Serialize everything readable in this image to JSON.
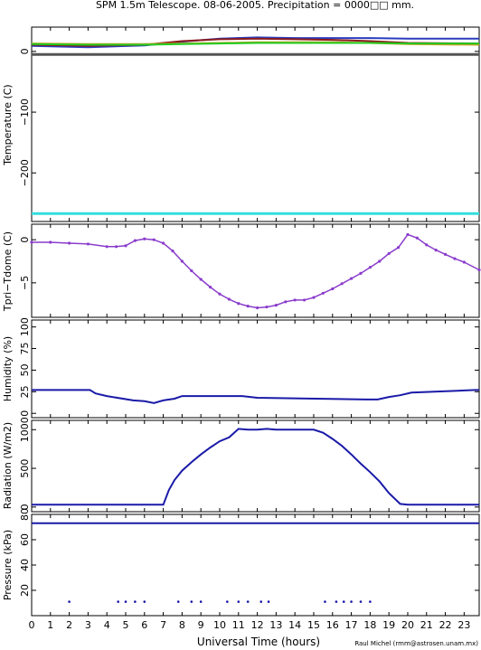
{
  "chart_data": [
    {
      "type": "line",
      "title": "SPM 1.5m Telescope. 08-06-2005. Precipitation = 0000□□ mm.",
      "ylabel": "Temperature (C)",
      "xlabel": "",
      "xlim": [
        0,
        23.8
      ],
      "ylim": [
        -280,
        40
      ],
      "yticks": [
        0,
        -100,
        -200
      ],
      "ytick_labels": [
        "0",
        "−100",
        "−200"
      ],
      "series": [
        {
          "color": "#2a3cbf",
          "x": [
            0,
            3,
            6,
            8,
            10,
            12,
            14,
            16,
            18,
            20,
            23.8
          ],
          "values": [
            9,
            7,
            10,
            16,
            21,
            23,
            22,
            22,
            22,
            21,
            21
          ]
        },
        {
          "color": "#8b1a1a",
          "x": [
            0,
            3,
            6,
            8,
            10,
            12,
            14,
            16,
            18,
            20,
            23.8
          ],
          "values": [
            11,
            9,
            11,
            17,
            20,
            21,
            20,
            19,
            17,
            14,
            13
          ]
        },
        {
          "color": "#c8a020",
          "x": [
            0,
            3,
            6,
            8,
            10,
            12,
            14,
            16,
            18,
            20,
            23.8
          ],
          "values": [
            13,
            12,
            12,
            13,
            14,
            15,
            15,
            15,
            14,
            12,
            11
          ]
        },
        {
          "color": "#22cc22",
          "x": [
            0,
            3,
            6,
            8,
            10,
            12,
            14,
            16,
            18,
            20,
            23.8
          ],
          "values": [
            12,
            11,
            11,
            12,
            13,
            14,
            14,
            14,
            14,
            13,
            13
          ]
        },
        {
          "color": "#555555",
          "x": [
            0,
            23.8
          ],
          "values": [
            -5,
            -5
          ]
        },
        {
          "color": "#33dddd",
          "x": [
            0,
            23.8
          ],
          "values": [
            -267,
            -267
          ]
        }
      ]
    },
    {
      "type": "scatter",
      "ylabel": "Tpri−Tdome (C)",
      "xlim": [
        0,
        23.8
      ],
      "ylim": [
        -9,
        1.8
      ],
      "yticks": [
        0,
        -5
      ],
      "ytick_labels": [
        "0",
        "−5"
      ],
      "series": [
        {
          "color": "#8a3ccc",
          "x": [
            0,
            1,
            2,
            3,
            4,
            4.5,
            5,
            5.5,
            6,
            6.5,
            7,
            7.5,
            8,
            8.5,
            9,
            9.5,
            10,
            10.5,
            11,
            11.5,
            12,
            12.5,
            13,
            13.5,
            14,
            14.5,
            15,
            15.5,
            16,
            16.5,
            17,
            17.5,
            18,
            18.5,
            19,
            19.5,
            20,
            20.5,
            21,
            21.5,
            22,
            22.5,
            23,
            23.8
          ],
          "values": [
            -0.3,
            -0.3,
            -0.4,
            -0.5,
            -0.8,
            -0.8,
            -0.7,
            -0.1,
            0.1,
            0.0,
            -0.4,
            -1.3,
            -2.5,
            -3.6,
            -4.6,
            -5.5,
            -6.3,
            -6.9,
            -7.4,
            -7.7,
            -7.9,
            -7.8,
            -7.6,
            -7.2,
            -7.0,
            -7.0,
            -6.7,
            -6.2,
            -5.7,
            -5.1,
            -4.5,
            -3.9,
            -3.2,
            -2.5,
            -1.6,
            -0.9,
            0.6,
            0.2,
            -0.6,
            -1.2,
            -1.7,
            -2.2,
            -2.6,
            -3.5
          ]
        }
      ]
    },
    {
      "type": "line",
      "ylabel": "Humidity (%)",
      "xlim": [
        0,
        23.8
      ],
      "ylim": [
        -5,
        108
      ],
      "yticks": [
        0,
        25,
        50,
        75,
        100
      ],
      "ytick_labels": [
        "0",
        "25",
        "50",
        "75",
        "100"
      ],
      "series": [
        {
          "color": "#1a1aa8",
          "x": [
            0,
            3.1,
            3.4,
            4.0,
            5.4,
            6.0,
            6.5,
            7.0,
            7.6,
            8.0,
            11.2,
            12.0,
            17.8,
            18.4,
            19.0,
            19.6,
            20.2,
            23.6,
            23.8
          ],
          "values": [
            27,
            27,
            23,
            20,
            15,
            14,
            12,
            15,
            17,
            20,
            20,
            18,
            16,
            16,
            19,
            21,
            24,
            27,
            27
          ]
        }
      ]
    },
    {
      "type": "line",
      "ylabel": "Radiation (W/m2)",
      "xlim": [
        0,
        23.8
      ],
      "ylim": [
        -60,
        1120
      ],
      "yticks": [
        0,
        500,
        1000
      ],
      "ytick_labels": [
        "0",
        "500",
        "1000"
      ],
      "series": [
        {
          "color": "#1a1aa8",
          "x": [
            0,
            7.0,
            7.3,
            7.6,
            8.0,
            8.5,
            9.0,
            9.5,
            10.0,
            10.5,
            11.0,
            11.5,
            12.0,
            12.5,
            13.0,
            14.0,
            15.0,
            15.5,
            16.0,
            16.5,
            17.0,
            17.5,
            18.0,
            18.5,
            19.0,
            19.6,
            20.0,
            23.8
          ],
          "values": [
            30,
            30,
            220,
            350,
            470,
            580,
            680,
            770,
            850,
            900,
            1010,
            1000,
            1000,
            1010,
            1000,
            1000,
            1000,
            960,
            880,
            790,
            680,
            560,
            450,
            330,
            180,
            40,
            30,
            30
          ]
        }
      ]
    },
    {
      "type": "scatter",
      "ylabel": "Pressure (kPa)",
      "xlabel": "Universal Time (hours)",
      "xlim": [
        0,
        23.8
      ],
      "ylim": [
        0,
        80
      ],
      "yticks": [
        20,
        40,
        60,
        80
      ],
      "ytick_labels": [
        "20",
        "40",
        "60",
        "80"
      ],
      "xticks": [
        0,
        1,
        2,
        3,
        4,
        5,
        6,
        7,
        8,
        9,
        10,
        11,
        12,
        13,
        14,
        15,
        16,
        17,
        18,
        19,
        20,
        21,
        22,
        23
      ],
      "xtick_labels": [
        "0",
        "1",
        "2",
        "3",
        "4",
        "5",
        "6",
        "7",
        "8",
        "9",
        "10",
        "11",
        "12",
        "13",
        "14",
        "15",
        "16",
        "17",
        "18",
        "19",
        "20",
        "21",
        "22",
        "23"
      ],
      "series": [
        {
          "color": "#1a1aa8",
          "x": [
            0,
            23.8
          ],
          "values": [
            73,
            73
          ]
        },
        {
          "color": "#1a1aa8",
          "marks": "dots",
          "x": [
            2.0,
            4.6,
            5.0,
            5.5,
            6.0,
            7.8,
            8.5,
            9.0,
            10.4,
            11.0,
            11.5,
            12.2,
            12.6,
            15.6,
            16.2,
            16.6,
            17.0,
            17.5,
            18.0
          ],
          "values": [
            11,
            11,
            11,
            11,
            11,
            11,
            11,
            11,
            11,
            11,
            11,
            11,
            11,
            11,
            11,
            11,
            11,
            11,
            11
          ]
        }
      ]
    }
  ],
  "credit": "Raul Michel (rmm@astrosen.unam.mx)"
}
